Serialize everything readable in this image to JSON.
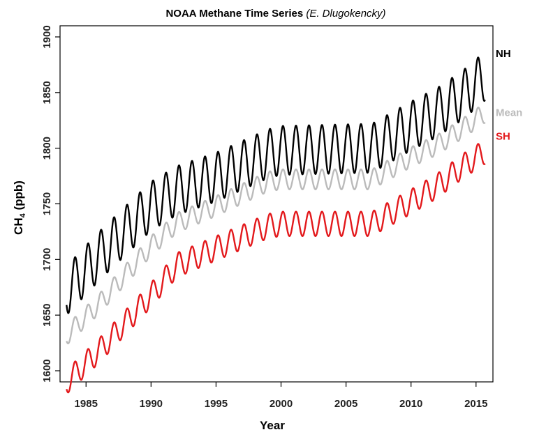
{
  "chart_data": {
    "type": "line",
    "title": "NOAA Methane Time Series",
    "title_credit": "(E. Dlugokencky)",
    "xlabel": "Year",
    "ylabel_main": "CH",
    "ylabel_sub": "4",
    "ylabel_unit": " (ppb)",
    "xlim": [
      1983,
      2016.3
    ],
    "ylim": [
      1590,
      1910
    ],
    "xticks": [
      1985,
      1990,
      1995,
      2000,
      2005,
      2010,
      2015
    ],
    "yticks": [
      1600,
      1650,
      1700,
      1750,
      1800,
      1850,
      1900
    ],
    "grid": false,
    "legend": "right-of-plot",
    "series": [
      {
        "name": "NH",
        "color": "#000000",
        "x_start": 1983.5,
        "x_end": 2015.7,
        "trend_knots": [
          [
            1983.5,
            1672
          ],
          [
            1986,
            1703
          ],
          [
            1990,
            1748
          ],
          [
            1992,
            1762
          ],
          [
            1995,
            1774
          ],
          [
            1999,
            1795
          ],
          [
            2000,
            1798
          ],
          [
            2007,
            1800
          ],
          [
            2010,
            1820
          ],
          [
            2012,
            1832
          ],
          [
            2014,
            1848
          ],
          [
            2015.7,
            1865
          ]
        ],
        "seasonal_amplitude": 22
      },
      {
        "name": "Mean",
        "color": "#bbbbbb",
        "x_start": 1983.5,
        "x_end": 2015.7,
        "trend_knots": [
          [
            1983.5,
            1632
          ],
          [
            1986,
            1660
          ],
          [
            1990,
            1712
          ],
          [
            1992,
            1733
          ],
          [
            1995,
            1748
          ],
          [
            1999,
            1770
          ],
          [
            2000,
            1772
          ],
          [
            2007,
            1772
          ],
          [
            2010,
            1792
          ],
          [
            2012,
            1803
          ],
          [
            2014,
            1818
          ],
          [
            2015.7,
            1832
          ]
        ],
        "seasonal_amplitude": 9
      },
      {
        "name": "SH",
        "color": "#e3191c",
        "x_start": 1983.5,
        "x_end": 2015.7,
        "trend_knots": [
          [
            1983.5,
            1590
          ],
          [
            1986,
            1618
          ],
          [
            1990,
            1668
          ],
          [
            1992,
            1695
          ],
          [
            1995,
            1710
          ],
          [
            1999,
            1730
          ],
          [
            2000,
            1732
          ],
          [
            2007,
            1732
          ],
          [
            2010,
            1752
          ],
          [
            2012,
            1766
          ],
          [
            2014,
            1784
          ],
          [
            2015.7,
            1797
          ]
        ],
        "seasonal_amplitude": 11
      }
    ]
  }
}
